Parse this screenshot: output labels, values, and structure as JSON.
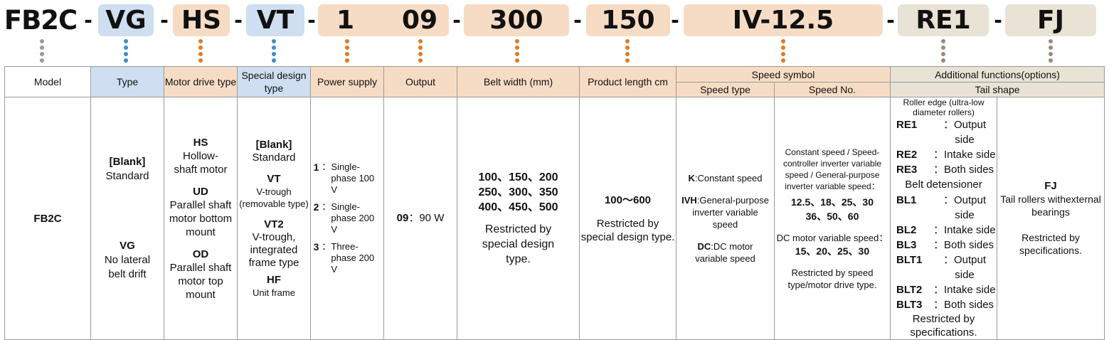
{
  "code": {
    "model": "FB2C",
    "dash": "-",
    "type": "VG",
    "motor_drive": "HS",
    "special_design": "VT",
    "power_supply": "1",
    "output": "09",
    "belt_width": "300",
    "product_length": "150",
    "speed": "IV-12.5",
    "additional": "RE1",
    "tail": "FJ"
  },
  "headers": {
    "model": "Model",
    "type": "Type",
    "motor_drive": "Motor drive type",
    "special_design": "Special design type",
    "power_supply": "Power supply",
    "output": "Output",
    "belt_width": "Belt width (mm)",
    "product_length": "Product length cm",
    "speed_symbol": "Speed symbol",
    "speed_type": "Speed type",
    "speed_no": "Speed No.",
    "additional": "Additional functions(options)",
    "tail_shape": "Tail shape"
  },
  "body": {
    "model": "FB2C",
    "type": {
      "blank_code": "[Blank]",
      "blank_desc": "Standard",
      "vg_code": "VG",
      "vg_desc": "No lateral belt drift"
    },
    "motor_drive": [
      {
        "code": "HS",
        "desc": "Hollow-shaft motor"
      },
      {
        "code": "UD",
        "desc": "Parallel shaft motor bottom mount"
      },
      {
        "code": "OD",
        "desc": "Parallel shaft motor top mount"
      }
    ],
    "special_design": [
      {
        "code": "[Blank]",
        "desc": "Standard"
      },
      {
        "code": "VT",
        "desc": "V-trough (removable type)"
      },
      {
        "code": "VT2",
        "desc": "V-trough, integrated frame type"
      },
      {
        "code": "HF",
        "desc": "Unit frame"
      }
    ],
    "power_supply": [
      {
        "code": "1",
        "sep": "：",
        "desc": "Single-phase 100 V"
      },
      {
        "code": "2",
        "sep": "：",
        "desc": "Single-phase 200 V"
      },
      {
        "code": "3",
        "sep": "：",
        "desc": "Three-phase 200 V"
      }
    ],
    "output": {
      "code": "09",
      "sep": "：",
      "desc": "90 W"
    },
    "belt_width": {
      "row1": "100、150、200",
      "row2": "250、300、350",
      "row3": "400、450、500",
      "note": "Restricted by special design type."
    },
    "product_length": {
      "range": "100～600",
      "note": "Restricted by special design type."
    },
    "speed_type": [
      {
        "code": "K",
        "desc": ":Constant speed"
      },
      {
        "code": "IVH",
        "desc": ":General-purpose inverter variable speed"
      },
      {
        "code": "DC",
        "desc": ":DC motor variable speed"
      }
    ],
    "speed_no": {
      "title": "Constant speed / Speed-controller inverter variable speed / General-purpose inverter variable speed：",
      "row1": "12.5、18、25、30",
      "row2": "36、50、60",
      "dc_title": "DC motor variable speed：",
      "dc_values": "15、20、25、30",
      "note": "Restricted by speed type/motor drive type."
    },
    "additional": {
      "roller_edge": "Roller edge (ultra-low diameter rollers)",
      "re": [
        {
          "code": "RE1",
          "desc": "：Output side"
        },
        {
          "code": "RE2",
          "desc": "：Intake side"
        },
        {
          "code": "RE3",
          "desc": "：Both sides"
        }
      ],
      "belt_detensioner": "Belt detensioner",
      "bl": [
        {
          "code": "BL1",
          "desc": "：Output side"
        },
        {
          "code": "BL2",
          "desc": "：Intake side"
        },
        {
          "code": "BL3",
          "desc": "：Both sides"
        },
        {
          "code": "BLT1",
          "desc": "：Output side"
        },
        {
          "code": "BLT2",
          "desc": "：Intake side"
        },
        {
          "code": "BLT3",
          "desc": "：Both sides"
        }
      ],
      "note": "Restricted by specifications."
    },
    "tail": {
      "code": "FJ",
      "desc": "Tail rollers withexternal bearings",
      "note": "Restricted by specifications."
    }
  },
  "colors": {
    "blue": "#cfdef0",
    "orange": "#f7dcc5",
    "beige": "#e9e3d6",
    "dot_blue": "#3f8cc9",
    "dot_orange": "#e07b1f",
    "dot_gray": "#999999",
    "dot_brown": "#9a8a78"
  }
}
